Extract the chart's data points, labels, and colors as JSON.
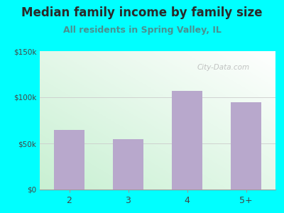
{
  "title": "Median family income by family size",
  "subtitle": "All residents in Spring Valley, IL",
  "categories": [
    "2",
    "3",
    "4",
    "5+"
  ],
  "values": [
    65000,
    55000,
    107000,
    95000
  ],
  "bar_color": "#b8a8cc",
  "background_outer": "#00ffff",
  "ylim": [
    0,
    150000
  ],
  "yticks": [
    0,
    50000,
    100000,
    150000
  ],
  "ytick_labels": [
    "$0",
    "$50k",
    "$100k",
    "$150k"
  ],
  "title_color": "#2a2a2a",
  "subtitle_color": "#4a9090",
  "tick_color": "#444444",
  "watermark": "City-Data.com",
  "title_fontsize": 12,
  "subtitle_fontsize": 9,
  "gradient_bottom_left": "#c8f0d0",
  "gradient_top_right": "#ffffff"
}
